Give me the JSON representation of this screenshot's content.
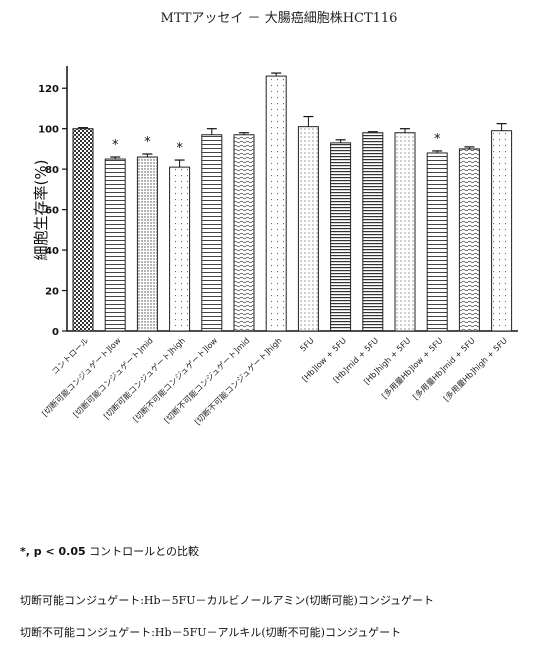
{
  "chart_data": {
    "type": "bar",
    "title": "MTTアッセイ － 大腸癌細胞株HCT116",
    "ylabel": "細胞生存率(%)",
    "xlabel": "",
    "ylim": [
      0,
      130
    ],
    "yticks": [
      0,
      20,
      40,
      60,
      80,
      100,
      120
    ],
    "categories": [
      "コントロール",
      "[切断可能コンジュゲート]low",
      "[切断可能コンジュゲート]mid",
      "[切断可能コンジュゲート]high",
      "[切断不可能コンジュゲート]low",
      "[切断不可能コンジュゲート]mid",
      "[切断不可能コンジュゲート]high",
      "5FU",
      "[Hb]low + 5FU",
      "[Hb]mid + 5FU",
      "[Hb]high + 5FU",
      "[多用量Hb]low + 5FU",
      "[多用量Hb]mid + 5FU",
      "[多用量Hb]high + 5FU"
    ],
    "values": [
      100,
      85,
      86,
      81,
      97,
      97,
      126,
      101,
      93,
      98,
      98,
      88,
      90,
      99
    ],
    "errors": [
      0.5,
      1,
      1.5,
      3.5,
      3,
      1,
      1.5,
      5,
      1.5,
      0.5,
      2,
      1,
      1,
      3.5
    ],
    "significant": [
      false,
      true,
      true,
      true,
      false,
      false,
      false,
      false,
      false,
      false,
      false,
      true,
      false,
      false
    ],
    "significance_marker": "*",
    "grid": false,
    "legend": "none",
    "colors": {
      "axis": "#111111",
      "bar_stroke": "#222222",
      "bar_fill": "#ffffff"
    }
  },
  "notes": {
    "sig_star": "*, p < 0.05",
    "sig_text": "コントロールとの比較",
    "def_cleavable": "切断可能コンジュゲート:Hb－5FU－カルビノールアミン(切断可能)コンジュゲート",
    "def_noncleavable": "切断不可能コンジュゲート:Hb－5FU－アルキル(切断不可能)コンジュゲート"
  }
}
